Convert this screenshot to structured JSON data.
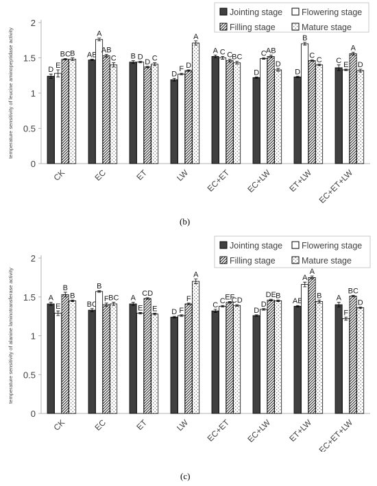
{
  "chart_data": [
    {
      "type": "bar",
      "panel_label": "(b)",
      "ylabel": "temperature sensitivity of leucine aminopeptidase activity",
      "ylim": [
        0,
        2
      ],
      "yticks": [
        "0",
        "0.5",
        "1",
        "1.5",
        "2"
      ],
      "categories": [
        "CK",
        "EC",
        "ET",
        "LW",
        "EC+ET",
        "EC+LW",
        "ET+LW",
        "EC+ET+LW"
      ],
      "legend_position": "top-right",
      "series": [
        {
          "name": "Jointing stage",
          "values": [
            1.24,
            1.47,
            1.44,
            1.19,
            1.52,
            1.22,
            1.23,
            1.36
          ],
          "errors": [
            0.03,
            0.01,
            0.02,
            0.02,
            0.02,
            0.01,
            0.01,
            0.04
          ],
          "letters": [
            "D",
            "AB",
            "B",
            "D",
            "A",
            "D",
            "D",
            "C"
          ]
        },
        {
          "name": "Flowering stage",
          "values": [
            1.28,
            1.76,
            1.44,
            1.27,
            1.5,
            1.49,
            1.7,
            1.33
          ],
          "errors": [
            0.05,
            0.02,
            0.01,
            0.01,
            0.02,
            0.01,
            0.02,
            0.01
          ],
          "letters": [
            "E",
            "A",
            "D",
            "F",
            "C",
            "C",
            "B",
            "E"
          ]
        },
        {
          "name": "Filling stage",
          "values": [
            1.48,
            1.53,
            1.37,
            1.32,
            1.46,
            1.52,
            1.46,
            1.56
          ],
          "errors": [
            0.01,
            0.02,
            0.01,
            0.01,
            0.02,
            0.02,
            0.01,
            0.02
          ],
          "letters": [
            "BC",
            "AB",
            "D",
            "D",
            "C",
            "AB",
            "C",
            "A"
          ]
        },
        {
          "name": "Mature stage",
          "values": [
            1.48,
            1.4,
            1.41,
            1.71,
            1.43,
            1.33,
            1.4,
            1.32
          ],
          "errors": [
            0.02,
            0.03,
            0.02,
            0.03,
            0.02,
            0.02,
            0.01,
            0.02
          ],
          "letters": [
            "B",
            "C",
            "C",
            "A",
            "BC",
            "D",
            "C",
            "D"
          ]
        }
      ]
    },
    {
      "type": "bar",
      "panel_label": "(c)",
      "ylabel": "temperature sensitivity of alanine laminotransferase activity",
      "ylim": [
        0,
        2
      ],
      "yticks": [
        "0",
        "0.5",
        "1",
        "1.5",
        "2"
      ],
      "categories": [
        "CK",
        "EC",
        "ET",
        "LW",
        "EC+ET",
        "EC+LW",
        "ET+LW",
        "EC+ET+LW"
      ],
      "legend_position": "top-right",
      "series": [
        {
          "name": "Jointing stage",
          "values": [
            1.41,
            1.33,
            1.41,
            1.24,
            1.32,
            1.26,
            1.38,
            1.4
          ],
          "errors": [
            0.02,
            0.02,
            0.02,
            0.01,
            0.02,
            0.01,
            0.01,
            0.03
          ],
          "letters": [
            "A",
            "BC",
            "A",
            "D",
            "C",
            "D",
            "AB",
            "A"
          ]
        },
        {
          "name": "Flowering stage",
          "values": [
            1.29,
            1.57,
            1.29,
            1.26,
            1.38,
            1.34,
            1.66,
            1.22
          ],
          "errors": [
            0.03,
            0.01,
            0.01,
            0.01,
            0.01,
            0.01,
            0.03,
            0.02
          ],
          "letters": [
            "E",
            "B",
            "E",
            "F",
            "C",
            "D",
            "A",
            "F"
          ]
        },
        {
          "name": "Filling stage",
          "values": [
            1.53,
            1.4,
            1.48,
            1.41,
            1.43,
            1.46,
            1.75,
            1.51
          ],
          "errors": [
            0.03,
            0.02,
            0.01,
            0.01,
            0.01,
            0.01,
            0.02,
            0.01
          ],
          "letters": [
            "B",
            "F",
            "CD",
            "F",
            "EF",
            "DE",
            "A",
            "BC"
          ]
        },
        {
          "name": "Mature stage",
          "values": [
            1.45,
            1.41,
            1.28,
            1.7,
            1.39,
            1.45,
            1.44,
            1.36
          ],
          "errors": [
            0.01,
            0.02,
            0.01,
            0.03,
            0.01,
            0.01,
            0.02,
            0.01
          ],
          "letters": [
            "B",
            "BC",
            "E",
            "A",
            "CD",
            "B",
            "B",
            "D"
          ]
        }
      ]
    }
  ],
  "style": {
    "bar_fill": "#404040",
    "bar_stroke": "#000000",
    "axis_color": "#b0b0b0",
    "legend_border": "#c8c8c8",
    "text_color": "#404040",
    "patterns": [
      "solid-dark",
      "white",
      "diagonal-hatch",
      "dots"
    ]
  }
}
